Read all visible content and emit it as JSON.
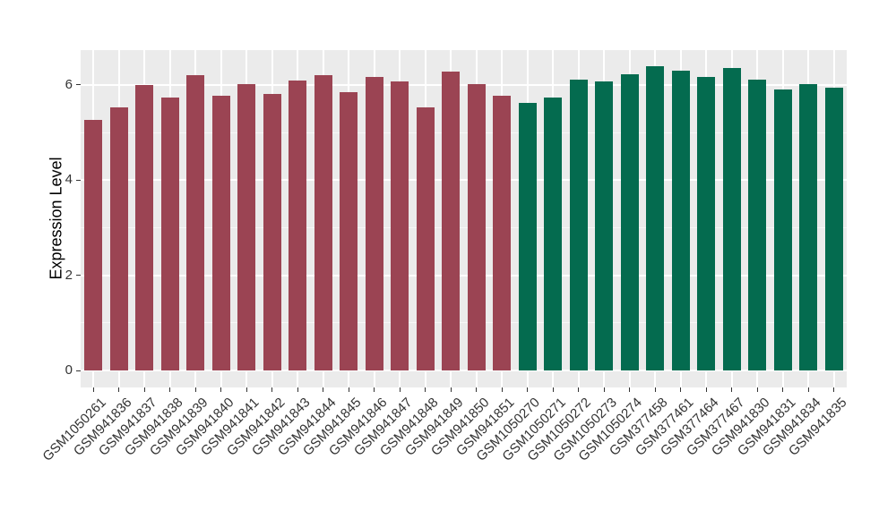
{
  "figure": {
    "background_color": "#FFFFFF",
    "panel_color": "#EBEBEB",
    "grid_color": "#FFFFFF",
    "axis_text_color": "#333333",
    "axis_title_color": "#000000"
  },
  "chart_data": {
    "type": "bar",
    "title": "",
    "xlabel": "",
    "ylabel": "Expression Level",
    "ylim": [
      0,
      6.73
    ],
    "yticks": [
      0,
      2,
      4,
      6
    ],
    "grid": "gray panel, white major/minor horizontal gridlines, white vertical gridline at each category",
    "legend_position": "none",
    "categories": [
      "GSM1050261",
      "GSM941836",
      "GSM941837",
      "GSM941838",
      "GSM941839",
      "GSM941840",
      "GSM941841",
      "GSM941842",
      "GSM941843",
      "GSM941844",
      "GSM941845",
      "GSM941846",
      "GSM941847",
      "GSM941848",
      "GSM941849",
      "GSM941850",
      "GSM941851",
      "GSM1050270",
      "GSM1050271",
      "GSM1050272",
      "GSM1050273",
      "GSM1050274",
      "GSM377458",
      "GSM377461",
      "GSM377464",
      "GSM377467",
      "GSM941830",
      "GSM941831",
      "GSM941834",
      "GSM941835"
    ],
    "values": [
      5.27,
      5.53,
      6.0,
      5.74,
      6.21,
      5.77,
      6.02,
      5.82,
      6.1,
      6.21,
      5.85,
      6.17,
      6.08,
      5.53,
      6.29,
      6.01,
      5.77,
      5.62,
      5.74,
      6.12,
      6.08,
      6.23,
      6.4,
      6.3,
      6.17,
      6.36,
      6.11,
      5.91,
      6.02,
      5.94
    ],
    "series_groups": [
      {
        "name": "group-1",
        "color": "#9B4453",
        "start_index": 0,
        "end_index": 16
      },
      {
        "name": "group-2",
        "color": "#046B4F",
        "start_index": 17,
        "end_index": 29
      }
    ]
  }
}
